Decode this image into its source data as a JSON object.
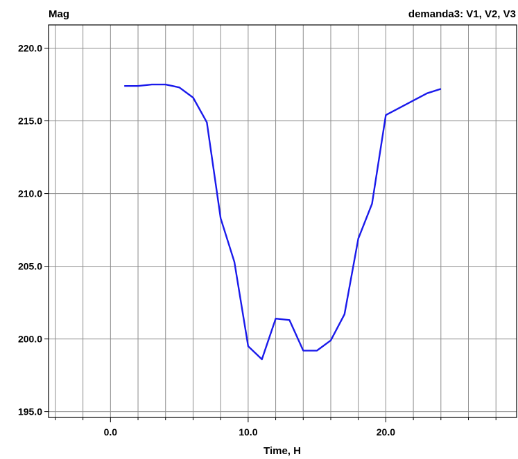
{
  "chart_data": {
    "type": "line",
    "ylabel": "Mag",
    "xlabel": "Time, H",
    "legend_text": "demanda3:  V1,  V2,  V3",
    "xlim": [
      -4.5,
      29.5
    ],
    "ylim": [
      194.6,
      221.6
    ],
    "x_ticks": [
      0.0,
      10.0,
      20.0
    ],
    "x_tick_labels": [
      "0.0",
      "10.0",
      "20.0"
    ],
    "y_ticks": [
      195.0,
      200.0,
      205.0,
      210.0,
      215.0,
      220.0
    ],
    "y_tick_labels": [
      "195.0",
      "200.0",
      "205.0",
      "210.0",
      "215.0",
      "220.0"
    ],
    "grid": true,
    "line_color": "#1a1aeb",
    "series": [
      {
        "x": [
          1,
          2,
          3,
          4,
          5,
          6,
          7,
          8,
          9,
          10,
          11,
          12,
          13,
          14,
          15,
          16,
          17,
          18,
          19,
          20,
          21,
          22,
          23,
          24
        ],
        "values": [
          217.4,
          217.4,
          217.5,
          217.5,
          217.3,
          216.6,
          214.9,
          208.3,
          205.3,
          199.5,
          198.6,
          201.4,
          201.3,
          199.2,
          199.2,
          199.9,
          201.7,
          206.9,
          209.3,
          215.4,
          215.9,
          216.4,
          216.9,
          217.2
        ]
      }
    ]
  }
}
